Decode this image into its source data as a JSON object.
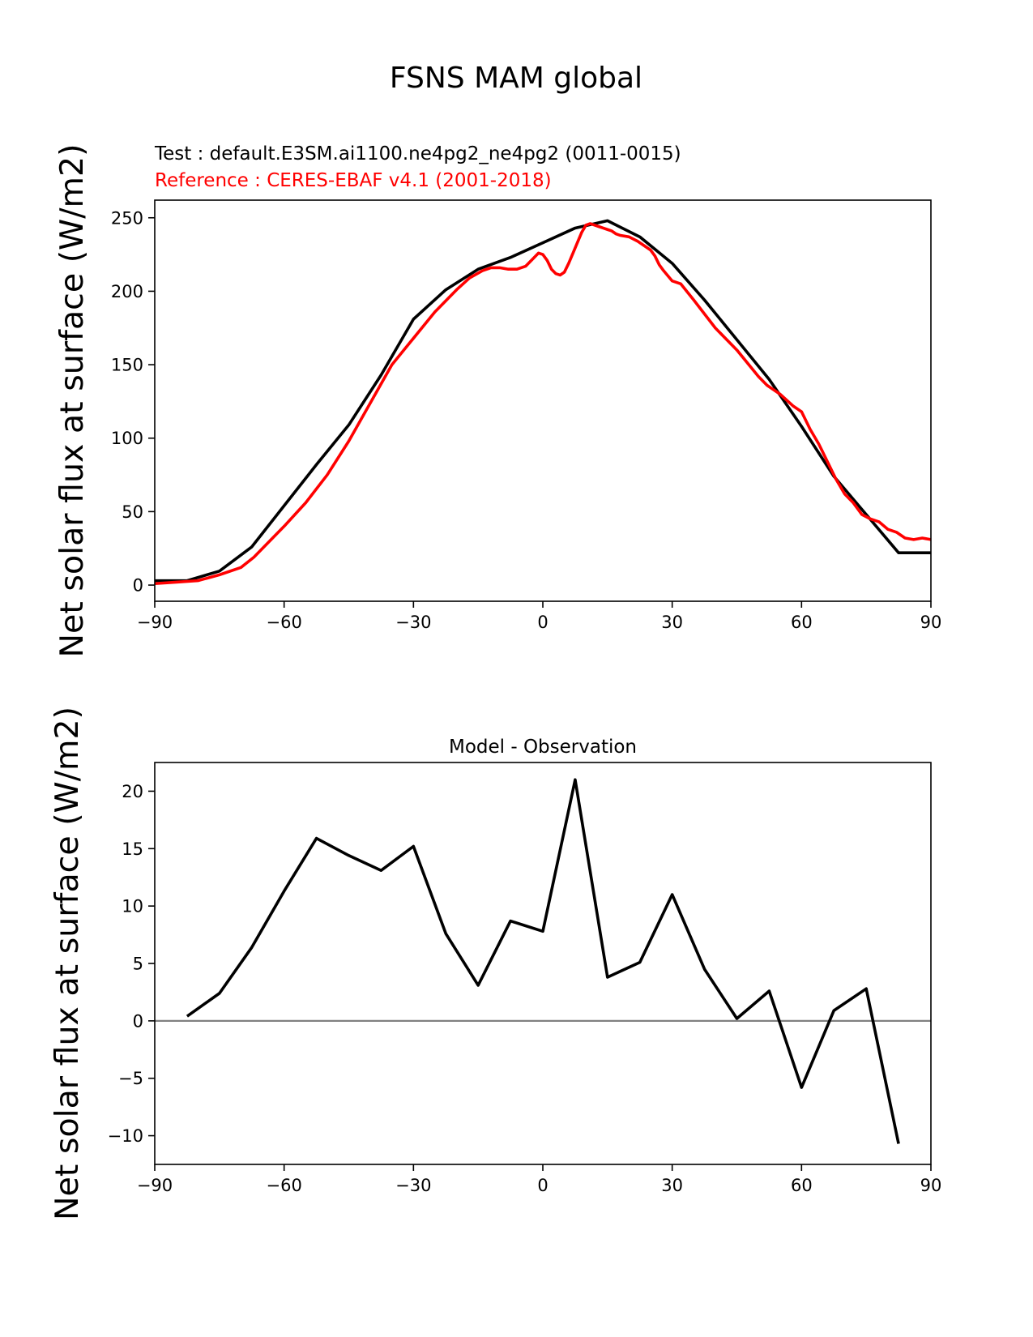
{
  "figure": {
    "title": "FSNS MAM global"
  },
  "chart_data": [
    {
      "type": "line",
      "test_label": "Test : default.E3SM.ai1100.ne4pg2_ne4pg2 (0011-0015)",
      "reference_label": "Reference : CERES-EBAF v4.1 (2001-2018)",
      "title": "",
      "xlabel": "",
      "ylabel": "Net solar flux at surface (W/m2)",
      "xlim": [
        -90,
        90
      ],
      "ylim": [
        -11,
        262
      ],
      "xticks": [
        -90,
        -60,
        -30,
        0,
        30,
        60,
        90
      ],
      "xtick_labels": [
        "−90",
        "−60",
        "−30",
        "0",
        "30",
        "60",
        "90"
      ],
      "yticks": [
        0,
        50,
        100,
        150,
        200,
        250
      ],
      "ytick_labels": [
        "0",
        "50",
        "100",
        "150",
        "200",
        "250"
      ],
      "grid": false,
      "colors": {
        "test": "#000000",
        "reference": "#ff0000"
      },
      "series": [
        {
          "name": "Test : default.E3SM.ai1100.ne4pg2_ne4pg2 (0011-0015)",
          "color": "#000000",
          "x": [
            -90,
            -82.5,
            -75,
            -67.5,
            -60,
            -52.5,
            -45,
            -37.5,
            -30,
            -22.5,
            -15,
            -7.5,
            0,
            7.5,
            15,
            22.5,
            30,
            37.5,
            45,
            52.5,
            60,
            67.5,
            75,
            82.5,
            90
          ],
          "y": [
            3,
            3,
            9.5,
            26,
            54,
            82,
            109,
            143,
            181,
            201,
            215,
            223,
            233,
            243,
            248,
            237,
            219,
            194,
            167,
            140,
            108,
            74,
            48,
            22,
            22
          ]
        },
        {
          "name": "Reference : CERES-EBAF v4.1 (2001-2018)",
          "color": "#ff0000",
          "x": [
            -90,
            -85,
            -80,
            -75,
            -70,
            -67,
            -64,
            -60,
            -55,
            -50,
            -45,
            -40,
            -35,
            -30,
            -25,
            -20,
            -17,
            -14,
            -12,
            -10,
            -8,
            -6,
            -4,
            -2,
            -1,
            0,
            1,
            2,
            3,
            4,
            5,
            6,
            7,
            8,
            9,
            10,
            11,
            12,
            13,
            14,
            15,
            16,
            17,
            18,
            20,
            22,
            24,
            25,
            26,
            27,
            28,
            30,
            32,
            35,
            40,
            45,
            50,
            52,
            55,
            58,
            60,
            62,
            64,
            66,
            68,
            70,
            72,
            74,
            76,
            78,
            80,
            82,
            84,
            86,
            88,
            90
          ],
          "y": [
            1,
            2,
            3,
            7,
            12,
            19,
            28,
            40,
            56,
            75,
            98,
            124,
            150,
            168,
            186,
            201,
            209,
            214,
            216,
            216,
            215,
            215,
            217,
            223,
            226,
            225,
            221,
            215,
            212,
            211,
            213,
            219,
            226,
            233,
            240,
            245,
            246,
            245,
            244,
            243,
            242,
            241,
            239,
            238,
            237,
            234,
            230,
            228,
            224,
            218,
            214,
            207,
            205,
            194,
            175,
            160,
            142,
            136,
            130,
            122,
            118,
            106,
            96,
            84,
            72,
            62,
            56,
            48,
            45,
            43,
            38,
            36,
            32,
            31,
            32,
            31
          ]
        }
      ]
    },
    {
      "type": "line",
      "title": "Model - Observation",
      "xlabel": "",
      "ylabel": "Net solar flux at surface (W/m2)",
      "xlim": [
        -90,
        90
      ],
      "ylim": [
        -12.5,
        22.5
      ],
      "xticks": [
        -90,
        -60,
        -30,
        0,
        30,
        60,
        90
      ],
      "xtick_labels": [
        "−90",
        "−60",
        "−30",
        "0",
        "30",
        "60",
        "90"
      ],
      "yticks": [
        -10,
        -5,
        0,
        5,
        10,
        15,
        20
      ],
      "ytick_labels": [
        "−10",
        "−5",
        "0",
        "5",
        "10",
        "15",
        "20"
      ],
      "grid": false,
      "zero_line_color": "#808080",
      "series": [
        {
          "color": "#000000",
          "x": [
            -82.5,
            -75,
            -67.5,
            -60,
            -52.5,
            -45,
            -37.5,
            -30,
            -22.5,
            -15,
            -7.5,
            0,
            7.5,
            15,
            22.5,
            30,
            37.5,
            45,
            52.5,
            60,
            67.5,
            75,
            82.5
          ],
          "y": [
            0.4,
            2.4,
            6.4,
            11.3,
            15.9,
            14.4,
            13.1,
            15.2,
            7.6,
            3.1,
            8.7,
            7.8,
            21.0,
            3.8,
            5.1,
            11.0,
            4.5,
            0.2,
            2.6,
            -5.8,
            0.9,
            2.8,
            -10.7
          ]
        }
      ]
    }
  ]
}
